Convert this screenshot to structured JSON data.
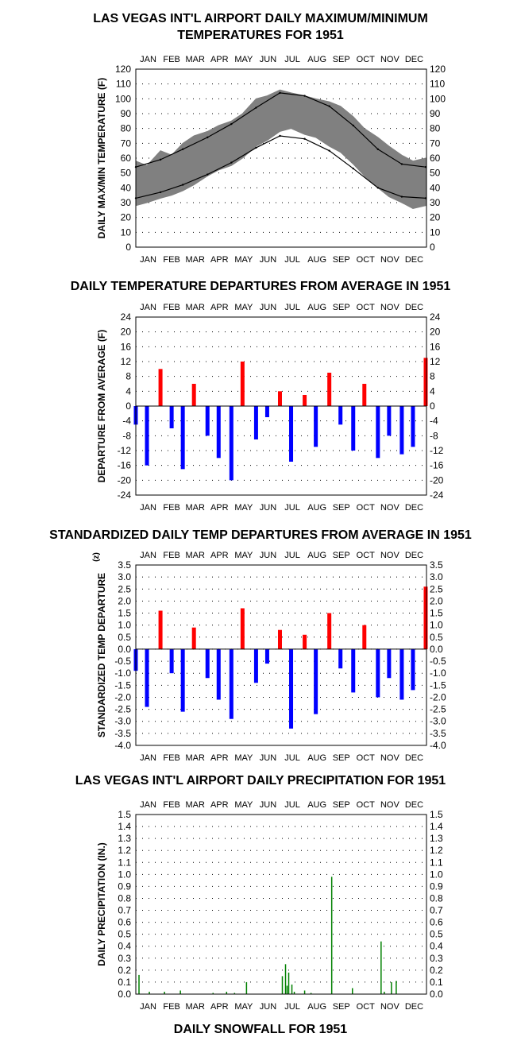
{
  "months": [
    "JAN",
    "FEB",
    "MAR",
    "APR",
    "MAY",
    "JUN",
    "JUL",
    "AUG",
    "SEP",
    "OCT",
    "NOV",
    "DEC"
  ],
  "colors": {
    "band": "#808080",
    "normal_line": "#000000",
    "positive": "#ff0000",
    "negative": "#0000ff",
    "precip": "#008000",
    "grid": "#000000"
  },
  "titles": {
    "temps_line1": "LAS VEGAS INT'L AIRPORT DAILY MAXIMUM/MINIMUM",
    "temps_line2": "TEMPERATURES FOR 1951",
    "departures": "DAILY TEMPERATURE DEPARTURES FROM AVERAGE IN 1951",
    "standardized": "STANDARDIZED DAILY TEMP DEPARTURES FROM AVERAGE IN 1951",
    "precip": "LAS VEGAS INT'L AIRPORT DAILY PRECIPITATION FOR 1951",
    "snowfall": "DAILY SNOWFALL FOR 1951"
  },
  "chart_data": [
    {
      "type": "area",
      "ylabel": "DAILY MAX/MIN TEMPERATURE (F)",
      "ylim": [
        0,
        120
      ],
      "yticks": [
        "0",
        "10",
        "20",
        "30",
        "40",
        "50",
        "60",
        "70",
        "80",
        "90",
        "100",
        "110",
        "120"
      ],
      "grid": "dotted",
      "series": [
        {
          "role": "daily-max-min-band",
          "x": [
            1,
            15,
            32,
            46,
            60,
            74,
            91,
            105,
            121,
            135,
            152,
            166,
            182,
            196,
            213,
            227,
            244,
            258,
            274,
            288,
            305,
            319,
            335,
            349,
            365
          ],
          "max": [
            58,
            55,
            65,
            62,
            70,
            75,
            78,
            82,
            85,
            90,
            100,
            102,
            106,
            104,
            102,
            100,
            98,
            95,
            88,
            80,
            74,
            68,
            62,
            58,
            60
          ],
          "min": [
            28,
            30,
            33,
            35,
            38,
            42,
            48,
            52,
            55,
            60,
            68,
            72,
            78,
            80,
            76,
            74,
            68,
            64,
            56,
            48,
            40,
            34,
            30,
            26,
            28
          ]
        },
        {
          "role": "normal-max",
          "x": [
            1,
            32,
            60,
            91,
            121,
            152,
            182,
            213,
            244,
            274,
            305,
            335,
            365
          ],
          "values": [
            54,
            59,
            66,
            74,
            83,
            94,
            104,
            102,
            95,
            82,
            66,
            56,
            54
          ]
        },
        {
          "role": "normal-min",
          "x": [
            1,
            32,
            60,
            91,
            121,
            152,
            182,
            213,
            244,
            274,
            305,
            335,
            365
          ],
          "values": [
            33,
            37,
            42,
            49,
            57,
            67,
            75,
            73,
            65,
            53,
            40,
            34,
            33
          ]
        }
      ]
    },
    {
      "type": "bar",
      "ylabel": "DEPARTURE FROM AVERAGE (F)",
      "ylim": [
        -24,
        24
      ],
      "yticks": [
        "24",
        "20",
        "16",
        "12",
        "8",
        "4",
        "0",
        "-4",
        "-8",
        "-12",
        "-16",
        "-20",
        "-24"
      ],
      "grid": "dotted",
      "x": [
        1,
        15,
        32,
        46,
        60,
        74,
        91,
        105,
        121,
        135,
        152,
        166,
        182,
        196,
        213,
        227,
        244,
        258,
        274,
        288,
        305,
        319,
        335,
        349,
        365
      ],
      "values": [
        -5,
        -16,
        10,
        -6,
        -17,
        6,
        -8,
        -14,
        -20,
        12,
        -9,
        -3,
        4,
        -15,
        3,
        -11,
        9,
        -5,
        -12,
        6,
        -14,
        -8,
        -13,
        -11,
        13
      ]
    },
    {
      "type": "bar",
      "ylabel": "STANDARDIZED TEMP DEPARTURE",
      "ylabel_unit": "(z)",
      "ylim": [
        -4.0,
        3.5
      ],
      "yticks": [
        "3.5",
        "3.0",
        "2.5",
        "2.0",
        "1.5",
        "1.0",
        "0.5",
        "0.0",
        "-0.5",
        "-1.0",
        "-1.5",
        "-2.0",
        "-2.5",
        "-3.0",
        "-3.5",
        "-4.0"
      ],
      "grid": "dotted",
      "x": [
        1,
        15,
        32,
        46,
        60,
        74,
        91,
        105,
        121,
        135,
        152,
        166,
        182,
        196,
        213,
        227,
        244,
        258,
        274,
        288,
        305,
        319,
        335,
        349,
        365
      ],
      "values": [
        -0.9,
        -2.4,
        1.6,
        -1.0,
        -2.6,
        0.9,
        -1.2,
        -2.1,
        -2.9,
        1.7,
        -1.4,
        -0.6,
        0.8,
        -3.3,
        0.6,
        -2.7,
        1.5,
        -0.8,
        -1.8,
        1.0,
        -2.0,
        -1.2,
        -2.1,
        -1.7,
        2.6
      ]
    },
    {
      "type": "bar",
      "ylabel": "DAILY PRECIPITATION (IN.)",
      "ylim": [
        0.0,
        1.5
      ],
      "yticks": [
        "0.0",
        "0.1",
        "0.2",
        "0.3",
        "0.4",
        "0.5",
        "0.6",
        "0.7",
        "0.8",
        "0.9",
        "1.0",
        "1.1",
        "1.2",
        "1.3",
        "1.4",
        "1.5"
      ],
      "grid": "dotted",
      "x": [
        5,
        18,
        37,
        57,
        98,
        115,
        125,
        140,
        185,
        189,
        191,
        193,
        197,
        200,
        213,
        221,
        247,
        273,
        309,
        313,
        322,
        328
      ],
      "values": [
        0.16,
        0.02,
        0.02,
        0.03,
        0.01,
        0.02,
        0.01,
        0.1,
        0.15,
        0.25,
        0.07,
        0.18,
        0.08,
        0.02,
        0.03,
        0.01,
        0.98,
        0.05,
        0.44,
        0.02,
        0.1,
        0.11
      ]
    }
  ]
}
